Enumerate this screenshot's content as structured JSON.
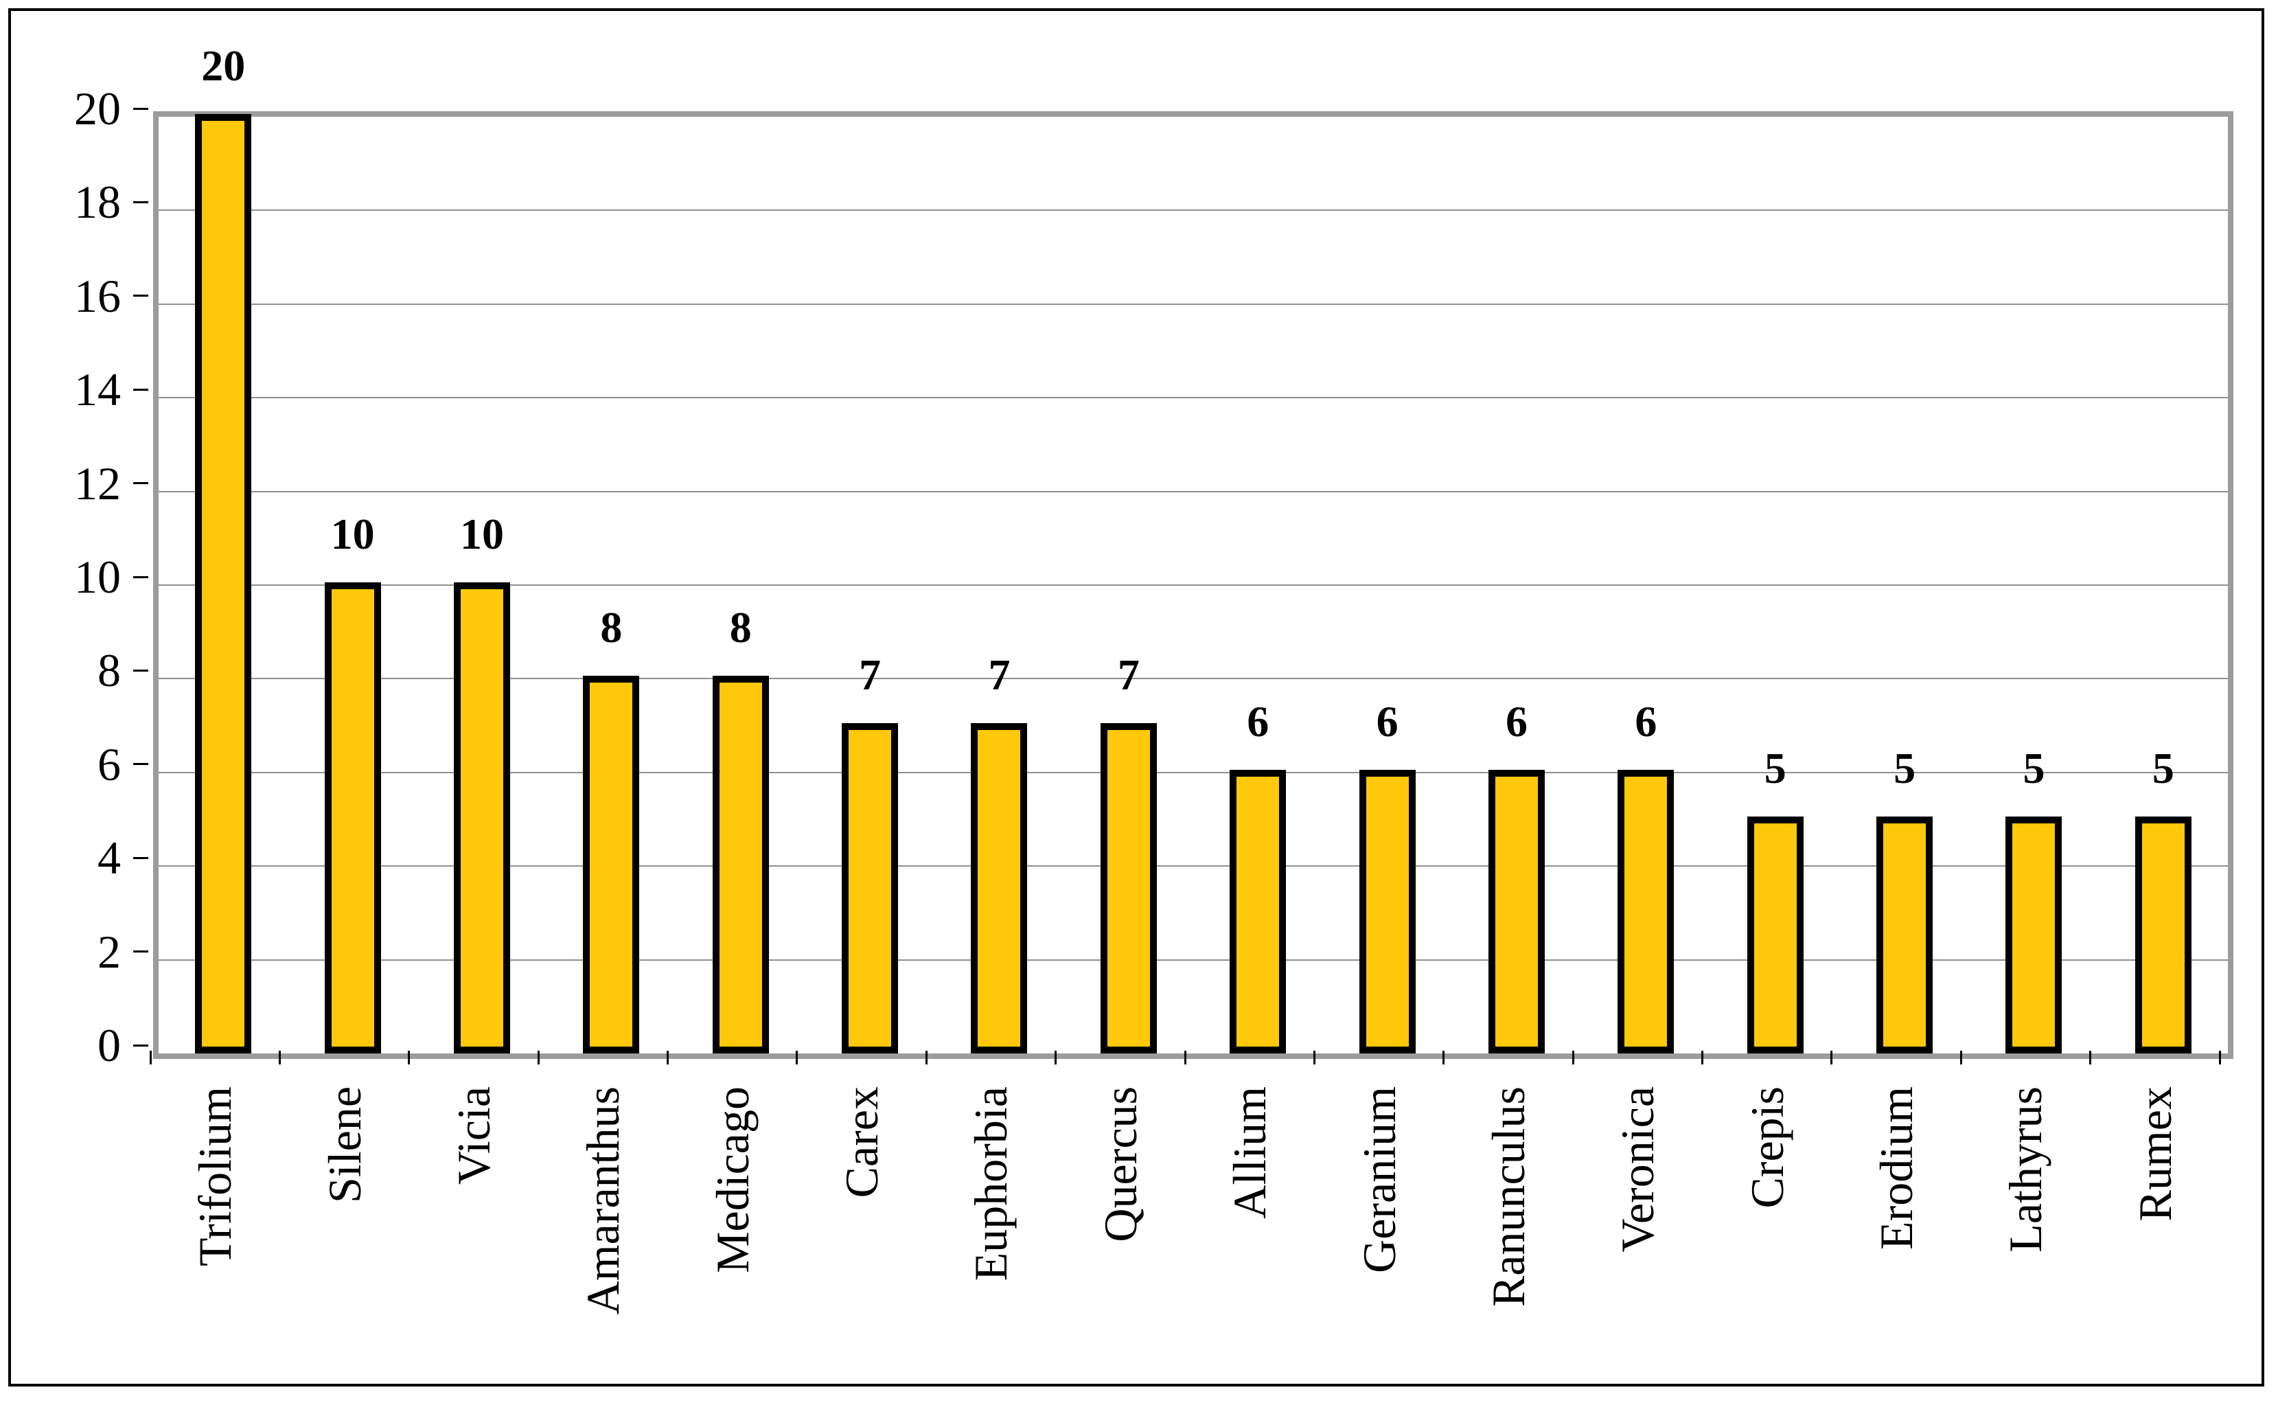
{
  "chart_data": {
    "type": "bar",
    "title": "",
    "xlabel": "",
    "ylabel": "",
    "categories": [
      "Trifolium",
      "Silene",
      "Vicia",
      "Amaranthus",
      "Medicago",
      "Carex",
      "Euphorbia",
      "Quercus",
      "Allium",
      "Geranium",
      "Ranunculus",
      "Veronica",
      "Crepis",
      "Erodium",
      "Lathyrus",
      "Rumex"
    ],
    "values": [
      20,
      10,
      10,
      8,
      8,
      7,
      7,
      7,
      6,
      6,
      6,
      6,
      5,
      5,
      5,
      5
    ],
    "data_labels": [
      "20",
      "10",
      "10",
      "8",
      "8",
      "7",
      "7",
      "7",
      "6",
      "6",
      "6",
      "6",
      "5",
      "5",
      "5",
      "5"
    ],
    "y_tick_labels": [
      "0",
      "2",
      "4",
      "6",
      "8",
      "10",
      "12",
      "14",
      "16",
      "18",
      "20"
    ],
    "y_ticks": [
      0,
      2,
      4,
      6,
      8,
      10,
      12,
      14,
      16,
      18,
      20
    ],
    "ylim": [
      0,
      20
    ],
    "grid": true,
    "legend_position": "none",
    "colors": {
      "bar_fill": "#FFC80A",
      "bar_border": "#000000",
      "gridline": "#909090",
      "plot_frame": "#9C9C9C",
      "figure_border": "#000000",
      "text": "#000000",
      "background": "#FFFFFF"
    }
  }
}
